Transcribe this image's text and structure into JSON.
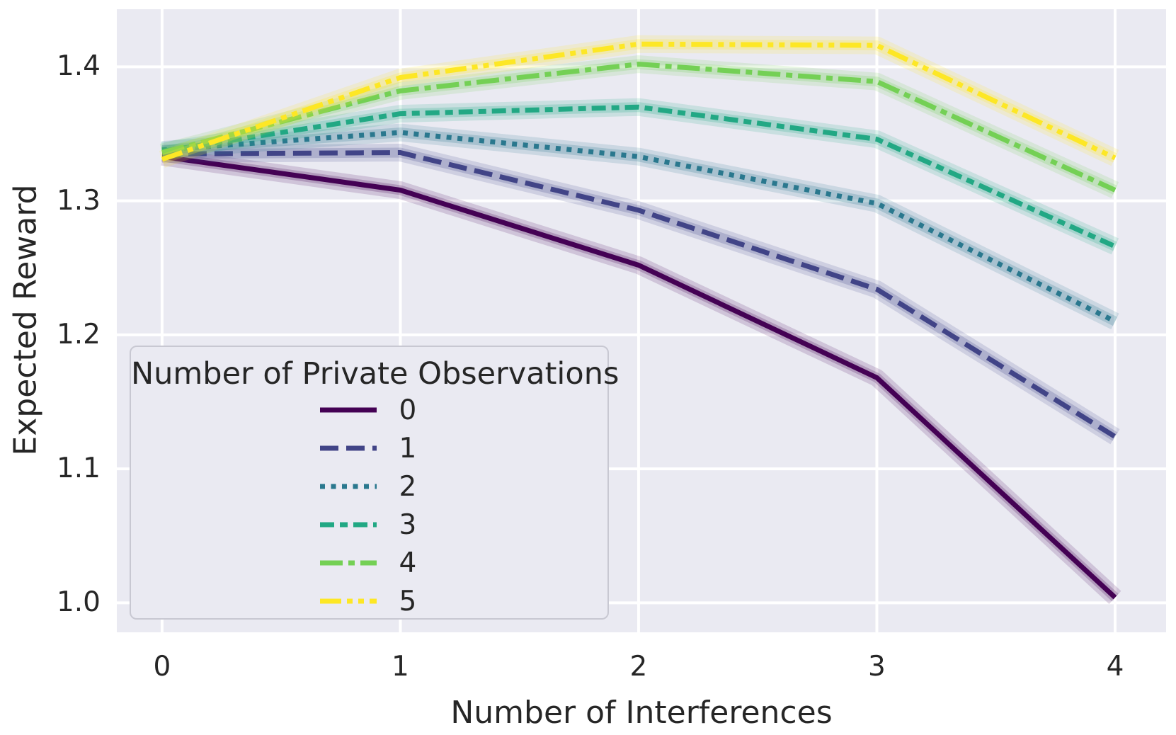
{
  "figure": {
    "background": "#ffffff",
    "plot_background": "#eaeaf2",
    "gridline_color": "#ffffff",
    "text_color": "#262626"
  },
  "axes": {
    "x": {
      "label": "Number of Interferences",
      "tick_labels": [
        "0",
        "1",
        "2",
        "3",
        "4"
      ]
    },
    "y": {
      "label": "Expected Reward",
      "tick_labels": [
        "1.4",
        "1.3",
        "1.2",
        "1.1",
        "1.0"
      ]
    }
  },
  "legend": {
    "title": "Number of Private Observations"
  },
  "chart_data": {
    "type": "line",
    "title": "",
    "xlabel": "Number of Interferences",
    "ylabel": "Expected Reward",
    "legend_title": "Number of Private Observations",
    "legend_position": "lower left",
    "grid": true,
    "ci_band": true,
    "x": [
      0,
      1,
      2,
      3,
      4
    ],
    "x_ticks": [
      0,
      1,
      2,
      3,
      4
    ],
    "y_ticks": [
      1.0,
      1.1,
      1.2,
      1.3,
      1.4
    ],
    "xlim": [
      -0.19,
      4.214
    ],
    "ylim": [
      0.978,
      1.443
    ],
    "series": [
      {
        "name": "0",
        "color": "#440154",
        "dash": "solid",
        "values": [
          1.333,
          1.308,
          1.252,
          1.168,
          1.004
        ]
      },
      {
        "name": "1",
        "color": "#414487",
        "dash": "dashed",
        "values": [
          1.335,
          1.336,
          1.293,
          1.234,
          1.124
        ]
      },
      {
        "name": "2",
        "color": "#2a788e",
        "dash": "dotted",
        "values": [
          1.338,
          1.351,
          1.333,
          1.298,
          1.21
        ]
      },
      {
        "name": "3",
        "color": "#22a884",
        "dash": "dashdot",
        "values": [
          1.337,
          1.365,
          1.37,
          1.346,
          1.266
        ]
      },
      {
        "name": "4",
        "color": "#74d055",
        "dash": "longdashdot",
        "values": [
          1.336,
          1.382,
          1.402,
          1.389,
          1.308
        ]
      },
      {
        "name": "5",
        "color": "#fde725",
        "dash": "dashdotdot",
        "values": [
          1.331,
          1.392,
          1.417,
          1.416,
          1.332
        ]
      }
    ]
  }
}
